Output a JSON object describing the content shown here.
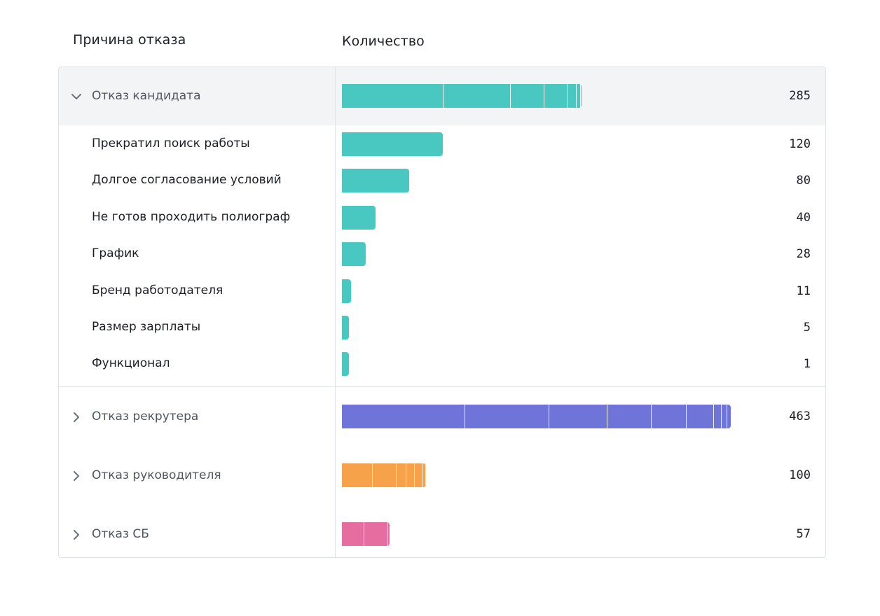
{
  "headers": {
    "reason": "Причина отказа",
    "count": "Количество"
  },
  "scale_max": 463,
  "groups": [
    {
      "label": "Отказ кандидата",
      "value": 285,
      "expanded": true,
      "color": "#49c7c1",
      "children": [
        {
          "label": "Прекратил поиск работы",
          "value": 120
        },
        {
          "label": "Долгое согласование условий",
          "value": 80
        },
        {
          "label": "Не готов проходить полиограф",
          "value": 40
        },
        {
          "label": "График",
          "value": 28
        },
        {
          "label": "Бренд работодателя",
          "value": 11
        },
        {
          "label": "Размер зарплаты",
          "value": 5
        },
        {
          "label": "Функционал",
          "value": 1
        }
      ]
    },
    {
      "label": "Отказ рекрутера",
      "value": 463,
      "expanded": false,
      "color": "#6e74d8",
      "segments": [
        146,
        100,
        69,
        53,
        42,
        32,
        9,
        7,
        5
      ]
    },
    {
      "label": "Отказ руководителя",
      "value": 100,
      "expanded": false,
      "color": "#f6a24a",
      "segments": [
        36,
        28,
        12,
        10,
        9,
        4,
        1
      ]
    },
    {
      "label": "Отказ СБ",
      "value": 57,
      "expanded": false,
      "color": "#e66d9f",
      "segments": [
        26,
        28,
        3
      ]
    }
  ],
  "chart_data": {
    "type": "bar",
    "categories": [
      "Отказ кандидата",
      "Прекратил поиск работы",
      "Долгое согласование условий",
      "Не готов проходить полиограф",
      "График",
      "Бренд работодателя",
      "Размер зарплаты",
      "Функционал",
      "Отказ рекрутера",
      "Отказ руководителя",
      "Отказ СБ"
    ],
    "values": [
      285,
      120,
      80,
      40,
      28,
      11,
      5,
      1,
      463,
      100,
      57
    ]
  }
}
